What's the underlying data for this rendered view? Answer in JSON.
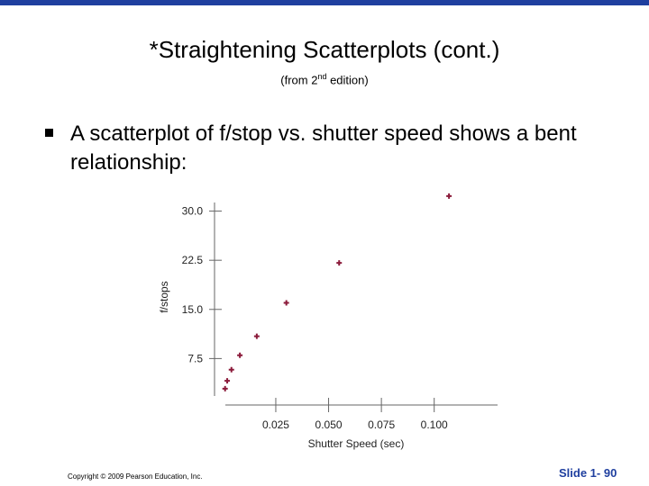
{
  "slide": {
    "title": "*Straightening Scatterplots (cont.)",
    "subtitle_parts": [
      "(from 2",
      "nd",
      " edition)"
    ],
    "bullet": "A scatterplot of f/stop vs. shutter speed shows a bent relationship:",
    "copyright": "Copyright © 2009 Pearson Education, Inc.",
    "slide_number": "Slide 1- 90"
  },
  "chart_data": {
    "type": "scatter",
    "x_label": "Shutter Speed (sec)",
    "y_label": "f/stops",
    "x": [
      0.001,
      0.002,
      0.004,
      0.008,
      0.016,
      0.03,
      0.055,
      0.107
    ],
    "y": [
      2.9,
      4.1,
      5.8,
      8.0,
      10.9,
      16.0,
      22.1,
      32.3
    ],
    "color": "#8b1a3a",
    "xlim": [
      -0.004,
      0.13
    ],
    "ylim": [
      0,
      32
    ],
    "xticks": [
      0.025,
      {
        "value": 0.05,
        "label": "0.050"
      },
      0.075,
      {
        "value": 0.1,
        "label": "0.100"
      }
    ],
    "yticks": [
      {
        "value": 7.5,
        "label": "7.5"
      },
      {
        "value": 15,
        "label": "15.0"
      },
      22.5,
      {
        "value": 30,
        "label": "30.0"
      }
    ]
  }
}
